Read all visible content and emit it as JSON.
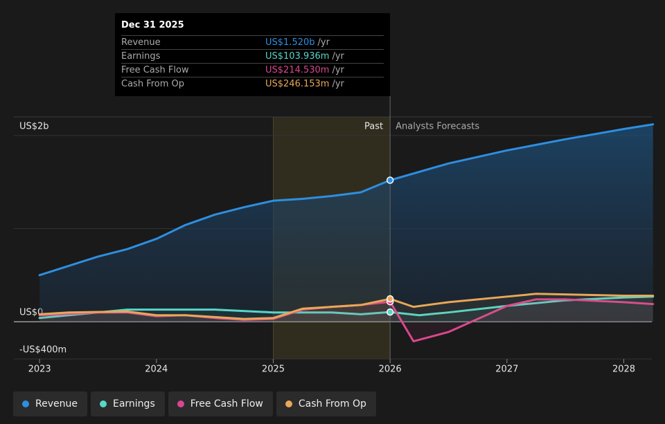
{
  "chart_data": {
    "type": "line",
    "xlim": [
      2022.78,
      2028.24
    ],
    "xticks": [
      2023,
      2024,
      2025,
      2026,
      2027,
      2028
    ],
    "ylim": [
      -0.4,
      2.2
    ],
    "yticks": [
      {
        "value": 2,
        "label": "US$2b"
      },
      {
        "value": 1,
        "label": null
      },
      {
        "value": 0,
        "label": "US$0"
      },
      {
        "value": -0.4,
        "label": "-US$400m"
      }
    ],
    "grid": true,
    "past_range": [
      2025,
      2026
    ],
    "past_label": "Past",
    "forecast_label": "Analysts Forecasts",
    "series": [
      {
        "name": "Revenue",
        "color": "#2e8fe0",
        "area": true,
        "x": [
          2023,
          2023.5,
          2023.75,
          2024,
          2024.25,
          2024.5,
          2024.75,
          2025,
          2025.25,
          2025.5,
          2025.75,
          2026,
          2026.5,
          2027,
          2027.5,
          2028,
          2028.25
        ],
        "values": [
          0.5,
          0.7,
          0.78,
          0.89,
          1.04,
          1.15,
          1.23,
          1.3,
          1.32,
          1.35,
          1.39,
          1.52,
          1.7,
          1.84,
          1.96,
          2.07,
          2.12
        ]
      },
      {
        "name": "Earnings",
        "color": "#58d6c8",
        "area": false,
        "x": [
          2023,
          2023.5,
          2023.75,
          2024,
          2024.5,
          2025,
          2025.5,
          2025.75,
          2026,
          2026.25,
          2026.5,
          2027,
          2027.5,
          2028,
          2028.25
        ],
        "values": [
          0.04,
          0.1,
          0.13,
          0.13,
          0.13,
          0.1,
          0.1,
          0.08,
          0.104,
          0.07,
          0.1,
          0.17,
          0.23,
          0.26,
          0.27
        ]
      },
      {
        "name": "Free Cash Flow",
        "color": "#d9478f",
        "area": false,
        "x": [
          2023,
          2023.5,
          2023.75,
          2024,
          2024.25,
          2024.5,
          2024.75,
          2025,
          2025.25,
          2025.5,
          2025.75,
          2026,
          2026.2,
          2026.5,
          2027,
          2027.25,
          2027.5,
          2028,
          2028.25
        ],
        "values": [
          0.07,
          0.1,
          0.1,
          0.06,
          0.07,
          0.04,
          0.02,
          0.03,
          0.13,
          0.16,
          0.18,
          0.215,
          -0.21,
          -0.11,
          0.17,
          0.24,
          0.24,
          0.21,
          0.19
        ]
      },
      {
        "name": "Cash From Op",
        "color": "#e8a857",
        "area": false,
        "x": [
          2023,
          2023.25,
          2023.75,
          2024,
          2024.25,
          2024.5,
          2024.75,
          2025,
          2025.25,
          2025.5,
          2025.75,
          2026,
          2026.2,
          2026.5,
          2027,
          2027.25,
          2028,
          2028.25
        ],
        "values": [
          0.08,
          0.1,
          0.11,
          0.07,
          0.07,
          0.05,
          0.03,
          0.04,
          0.14,
          0.16,
          0.18,
          0.246,
          0.16,
          0.21,
          0.27,
          0.3,
          0.28,
          0.28
        ]
      }
    ],
    "tooltip": {
      "date": "Dec 31 2025",
      "rows": [
        {
          "name": "Revenue",
          "value": "US$1.520b",
          "unit": "/yr"
        },
        {
          "name": "Earnings",
          "value": "US$103.936m",
          "unit": "/yr"
        },
        {
          "name": "Free Cash Flow",
          "value": "US$214.530m",
          "unit": "/yr"
        },
        {
          "name": "Cash From Op",
          "value": "US$246.153m",
          "unit": "/yr"
        }
      ]
    }
  }
}
